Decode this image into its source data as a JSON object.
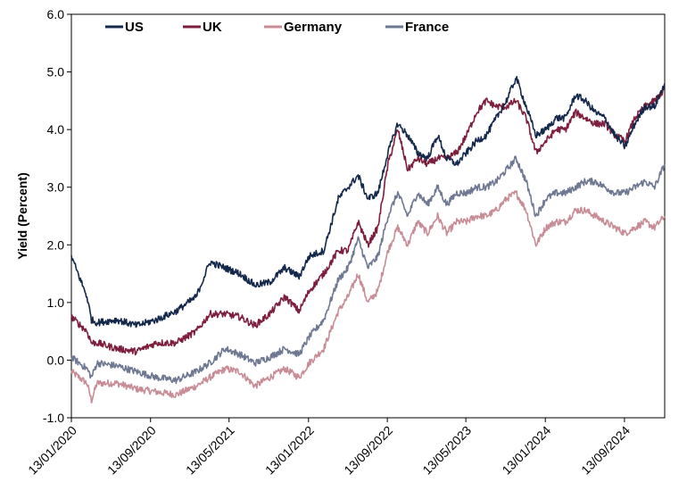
{
  "chart_data": {
    "type": "line",
    "title": "",
    "xlabel": "",
    "ylabel": "Yield (Percent)",
    "ylim": [
      -1.0,
      6.0
    ],
    "yticks": [
      "-1.0",
      "0.0",
      "1.0",
      "2.0",
      "3.0",
      "4.0",
      "5.0",
      "6.0"
    ],
    "xlim": [
      "2020-01-13",
      "2025-01-15"
    ],
    "xticks": [
      "13/01/2020",
      "13/09/2020",
      "13/05/2021",
      "13/01/2022",
      "13/09/2022",
      "13/05/2023",
      "13/01/2024",
      "13/09/2024"
    ],
    "xtick_dates": [
      "2020-01-13",
      "2020-09-13",
      "2021-05-13",
      "2022-01-13",
      "2022-09-13",
      "2023-05-13",
      "2024-01-13",
      "2024-09-13"
    ],
    "grid": false,
    "legend": "top-left",
    "x": [
      "2020-01-13",
      "2020-03-01",
      "2020-03-15",
      "2020-04-01",
      "2020-06-01",
      "2020-08-01",
      "2020-10-01",
      "2020-12-01",
      "2021-02-01",
      "2021-03-15",
      "2021-05-01",
      "2021-06-15",
      "2021-08-01",
      "2021-09-15",
      "2021-11-01",
      "2021-12-15",
      "2022-01-15",
      "2022-03-01",
      "2022-04-15",
      "2022-05-15",
      "2022-06-15",
      "2022-07-15",
      "2022-08-15",
      "2022-09-15",
      "2022-10-15",
      "2022-11-15",
      "2022-12-15",
      "2023-01-15",
      "2023-02-15",
      "2023-03-15",
      "2023-04-15",
      "2023-05-15",
      "2023-06-15",
      "2023-07-15",
      "2023-08-15",
      "2023-09-15",
      "2023-10-15",
      "2023-11-15",
      "2023-12-15",
      "2024-01-15",
      "2024-02-15",
      "2024-03-15",
      "2024-04-15",
      "2024-05-15",
      "2024-06-15",
      "2024-07-15",
      "2024-08-15",
      "2024-09-15",
      "2024-10-15",
      "2024-11-15",
      "2024-12-15",
      "2025-01-15"
    ],
    "series": [
      {
        "name": "US",
        "color": "#14284b",
        "values": [
          1.8,
          1.1,
          0.7,
          0.65,
          0.7,
          0.6,
          0.7,
          0.85,
          1.1,
          1.7,
          1.6,
          1.5,
          1.3,
          1.35,
          1.6,
          1.45,
          1.8,
          1.9,
          2.8,
          3.0,
          3.2,
          2.8,
          2.9,
          3.6,
          4.1,
          3.9,
          3.6,
          3.5,
          3.9,
          3.5,
          3.4,
          3.6,
          3.8,
          3.9,
          4.2,
          4.5,
          4.9,
          4.4,
          3.9,
          4.0,
          4.2,
          4.2,
          4.6,
          4.5,
          4.3,
          4.2,
          3.9,
          3.7,
          4.1,
          4.4,
          4.4,
          4.8
        ]
      },
      {
        "name": "UK",
        "color": "#7d1e3c",
        "values": [
          0.75,
          0.5,
          0.3,
          0.3,
          0.2,
          0.15,
          0.3,
          0.3,
          0.5,
          0.8,
          0.8,
          0.75,
          0.6,
          0.8,
          1.1,
          0.85,
          1.2,
          1.5,
          1.9,
          1.9,
          2.4,
          2.0,
          2.3,
          3.4,
          4.0,
          3.3,
          3.5,
          3.4,
          3.5,
          3.5,
          3.6,
          3.9,
          4.3,
          4.5,
          4.4,
          4.4,
          4.5,
          4.2,
          3.6,
          3.8,
          4.0,
          4.0,
          4.3,
          4.2,
          4.1,
          4.1,
          3.9,
          3.8,
          4.2,
          4.4,
          4.5,
          4.7
        ]
      },
      {
        "name": "Germany",
        "color": "#c88c96",
        "values": [
          -0.2,
          -0.4,
          -0.7,
          -0.4,
          -0.4,
          -0.5,
          -0.55,
          -0.6,
          -0.45,
          -0.3,
          -0.15,
          -0.2,
          -0.45,
          -0.3,
          -0.15,
          -0.3,
          -0.05,
          0.2,
          0.85,
          1.1,
          1.5,
          1.0,
          1.2,
          1.9,
          2.3,
          2.0,
          2.4,
          2.2,
          2.5,
          2.2,
          2.4,
          2.4,
          2.5,
          2.5,
          2.6,
          2.8,
          2.9,
          2.6,
          2.0,
          2.3,
          2.4,
          2.4,
          2.6,
          2.6,
          2.5,
          2.4,
          2.3,
          2.2,
          2.3,
          2.4,
          2.3,
          2.5
        ]
      },
      {
        "name": "France",
        "color": "#6e7891",
        "values": [
          0.05,
          -0.15,
          -0.3,
          -0.05,
          -0.1,
          -0.2,
          -0.3,
          -0.35,
          -0.2,
          -0.05,
          0.2,
          0.1,
          -0.05,
          0.05,
          0.2,
          0.1,
          0.4,
          0.7,
          1.4,
          1.6,
          2.1,
          1.6,
          1.8,
          2.5,
          2.9,
          2.5,
          2.9,
          2.7,
          3.0,
          2.7,
          2.9,
          2.9,
          3.0,
          3.0,
          3.1,
          3.3,
          3.5,
          3.1,
          2.5,
          2.8,
          2.9,
          2.9,
          3.0,
          3.1,
          3.1,
          3.0,
          2.9,
          2.9,
          3.0,
          3.1,
          3.0,
          3.4
        ]
      }
    ]
  }
}
